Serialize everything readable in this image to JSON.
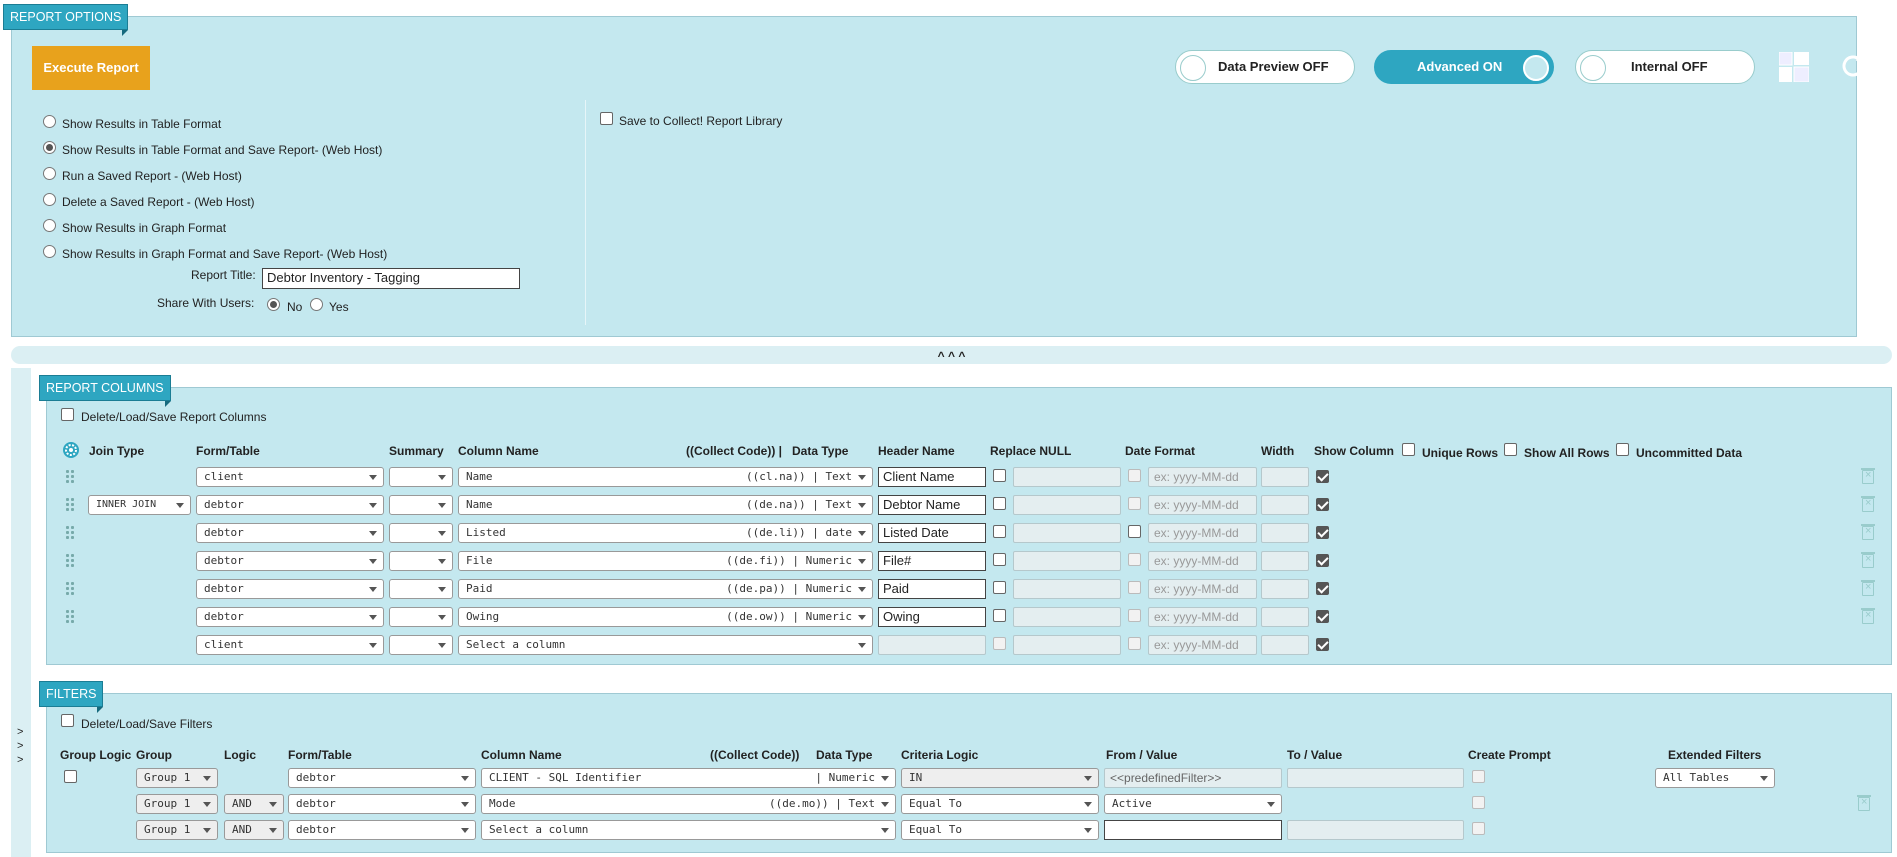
{
  "report_options": {
    "tag": "REPORT OPTIONS",
    "execute_label": "Execute Report",
    "toggles": {
      "data_preview": "Data Preview OFF",
      "advanced": "Advanced ON",
      "internal": "Internal OFF"
    },
    "radio_options": [
      "Show Results in Table Format",
      "Show Results in Table Format and Save Report- (Web Host)",
      "Run a Saved Report - (Web Host)",
      "Delete a Saved Report - (Web Host)",
      "Show Results in Graph Format",
      "Show Results in Graph Format and Save Report- (Web Host)"
    ],
    "selected_option_index": 1,
    "report_title_label": "Report Title:",
    "report_title_value": "Debtor Inventory - Tagging",
    "share_label": "Share With Users:",
    "share_no": "No",
    "share_yes": "Yes",
    "save_to_library_label": "Save to Collect! Report Library"
  },
  "collapse_glyph": "^ ^ ^",
  "report_columns": {
    "tag": "REPORT COLUMNS",
    "delete_load_save_label": "Delete/Load/Save Report Columns",
    "headers": {
      "join_type": "Join Type",
      "form_table": "Form/Table",
      "summary": "Summary",
      "column_name": "Column Name",
      "collect_code": "((Collect Code)) |",
      "data_type": "Data Type",
      "header_name": "Header Name",
      "replace_null": "Replace NULL",
      "date_format": "Date Format",
      "width": "Width",
      "show_column": "Show Column",
      "unique_rows": "Unique Rows",
      "show_all_rows": "Show All Rows",
      "uncommitted_data": "Uncommitted Data"
    },
    "date_placeholder": "ex: yyyy-MM-dd",
    "rows": [
      {
        "join": "",
        "table": "client",
        "column": "Name",
        "code": "((cl.na)) | Text",
        "header": "Client Name",
        "date_cb": false,
        "handle": true
      },
      {
        "join": "INNER JOIN",
        "table": "debtor",
        "column": "Name",
        "code": "((de.na)) | Text",
        "header": "Debtor Name",
        "date_cb": false,
        "handle": true
      },
      {
        "join": "",
        "table": "debtor",
        "column": "Listed",
        "code": "((de.li)) | date",
        "header": "Listed Date",
        "date_cb": true,
        "handle": true
      },
      {
        "join": "",
        "table": "debtor",
        "column": "File",
        "code": "((de.fi)) | Numeric",
        "header": "File#",
        "date_cb": false,
        "handle": true
      },
      {
        "join": "",
        "table": "debtor",
        "column": "Paid",
        "code": "((de.pa)) | Numeric",
        "header": "Paid",
        "date_cb": false,
        "handle": true
      },
      {
        "join": "",
        "table": "debtor",
        "column": "Owing",
        "code": "((de.ow)) | Numeric",
        "header": "Owing",
        "date_cb": false,
        "handle": true
      },
      {
        "join": "",
        "table": "client",
        "column": "Select a column",
        "code": "",
        "header": "",
        "date_cb": false,
        "handle": false
      }
    ]
  },
  "filters": {
    "tag": "FILTERS",
    "delete_load_save_label": "Delete/Load/Save Filters",
    "headers": {
      "group_logic": "Group Logic",
      "group": "Group",
      "logic": "Logic",
      "form_table": "Form/Table",
      "column_name": "Column Name",
      "collect_code": "((Collect Code))",
      "data_type": "Data Type",
      "criteria_logic": "Criteria Logic",
      "from_value": "From / Value",
      "to_value": "To / Value",
      "create_prompt": "Create Prompt",
      "extended_filters": "Extended Filters"
    },
    "rows": [
      {
        "group": "Group 1",
        "logic": "",
        "table": "debtor",
        "column": "CLIENT - SQL Identifier",
        "code": "| Numeric",
        "criteria": "IN",
        "from": "<<predefinedFilter>>"
      },
      {
        "group": "Group 1",
        "logic": "AND",
        "table": "debtor",
        "column": "Mode",
        "code": "((de.mo)) | Text",
        "criteria": "Equal To",
        "from": "Active"
      },
      {
        "group": "Group 1",
        "logic": "AND",
        "table": "debtor",
        "column": "Select a column",
        "code": "",
        "criteria": "Equal To",
        "from": ""
      }
    ],
    "extended_value": "All Tables"
  },
  "side_arrows": [
    ">",
    ">",
    ">"
  ],
  "colors": {
    "panel_bg": "#c4e8ef",
    "tag_bg": "#2ea6c1",
    "execute_bg": "#e8a21c",
    "toggle_on": "#2ea6c1"
  }
}
